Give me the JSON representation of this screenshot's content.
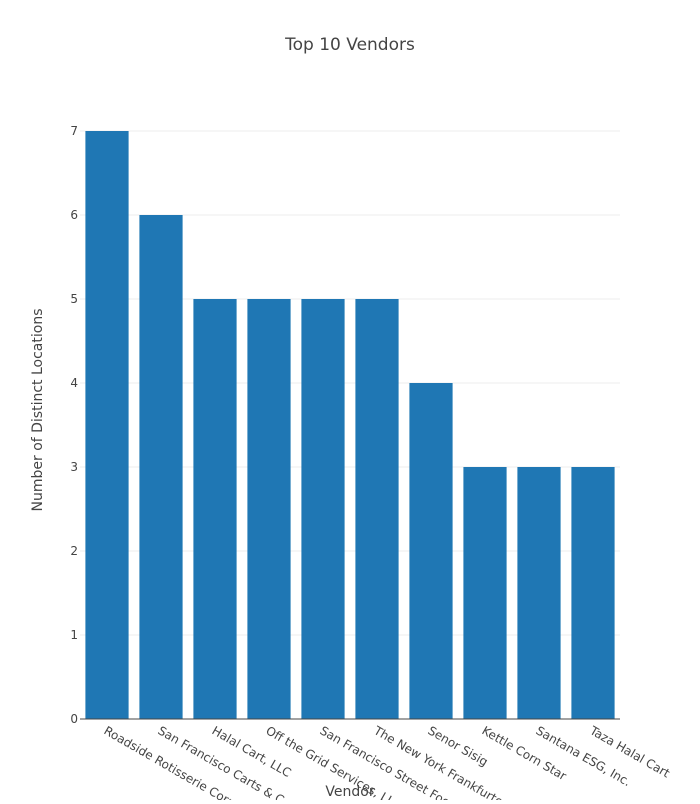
{
  "chart_data": {
    "type": "bar",
    "title": "Top 10 Vendors",
    "xlabel": "Vendor",
    "ylabel": "Number of Distinct Locations",
    "categories": [
      "Roadside Rotisserie Corporation",
      "San Francisco Carts & Concessions",
      "Halal Cart, LLC",
      "Off the Grid Services, LLC",
      "San Francisco Street Foods",
      "The New York Frankfurter",
      "Senor Sisig",
      "Kettle Corn Star",
      "Santana ESG, Inc.",
      "Taza Halal Cart"
    ],
    "values": [
      7,
      6,
      5,
      5,
      5,
      5,
      4,
      3,
      3,
      3
    ],
    "ylim": [
      0,
      7
    ],
    "yticks": [
      0,
      1,
      2,
      3,
      4,
      5,
      6,
      7
    ],
    "grid": true,
    "legend": "none",
    "colors": {
      "bar": "#1f77b4",
      "grid": "#eeeeee",
      "axis": "#444444",
      "text": "#444444"
    }
  }
}
